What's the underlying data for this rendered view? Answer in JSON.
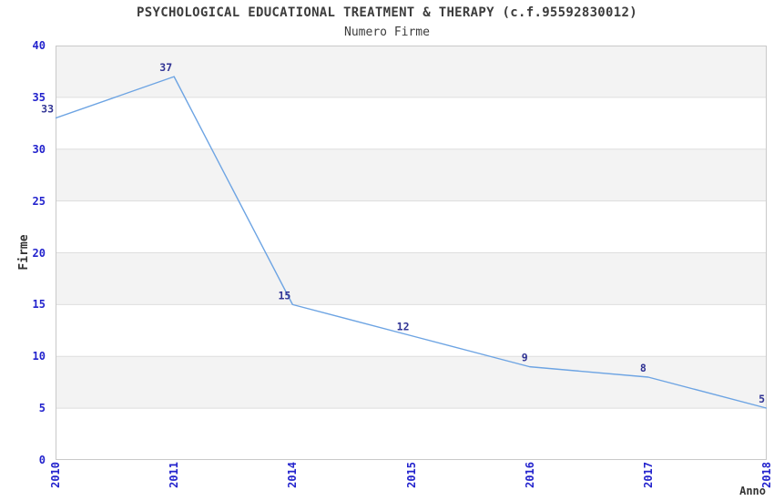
{
  "chart_data": {
    "type": "line",
    "title": "PSYCHOLOGICAL EDUCATIONAL TREATMENT & THERAPY (c.f.95592830012)",
    "subtitle": "Numero Firme",
    "xlabel": "Anno",
    "ylabel": "Firme",
    "categories": [
      "2010",
      "2011",
      "2014",
      "2015",
      "2016",
      "2017",
      "2018"
    ],
    "values": [
      33,
      37,
      15,
      12,
      9,
      8,
      5
    ],
    "ylim": [
      0,
      40
    ],
    "ytick_step": 5,
    "yticks": [
      0,
      5,
      10,
      15,
      20,
      25,
      30,
      35,
      40
    ],
    "grid": "horizontal-bands-alternating",
    "legend": "none",
    "colors": {
      "line": "#6da4e3",
      "tick_label": "#2323cd",
      "data_label": "#303394",
      "band_fill": "#f3f3f3",
      "grid_line": "#dedede",
      "plot_border": "#c9c9c9",
      "title_text": "#3c3c3c",
      "axis_label_text": "#333333"
    }
  }
}
